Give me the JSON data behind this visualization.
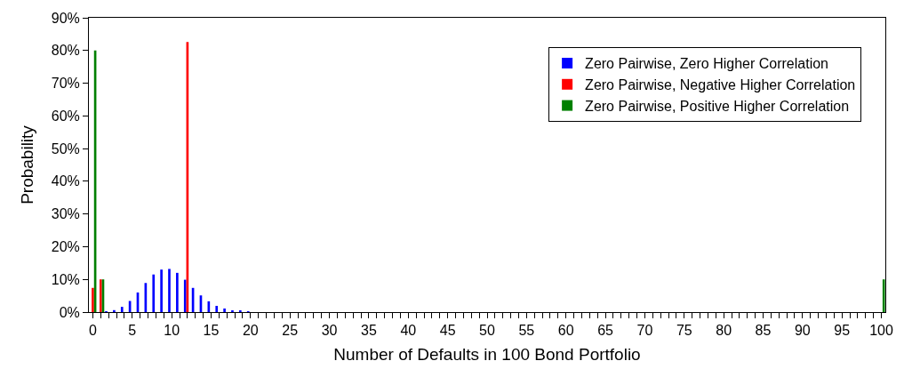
{
  "chart_data": {
    "type": "bar",
    "xlabel": "Number of Defaults in 100 Bond Portfolio",
    "ylabel": "Probability",
    "categories": [
      "0",
      null,
      null,
      null,
      null,
      "5",
      null,
      null,
      null,
      null,
      "10",
      null,
      null,
      null,
      null,
      "15",
      null,
      null,
      null,
      null,
      "20",
      null,
      null,
      null,
      null,
      "25",
      null,
      null,
      null,
      null,
      "30",
      null,
      null,
      null,
      null,
      "35",
      null,
      null,
      null,
      null,
      "40",
      null,
      null,
      null,
      null,
      "45",
      null,
      null,
      null,
      null,
      "50",
      null,
      null,
      null,
      null,
      "55",
      null,
      null,
      null,
      null,
      "60",
      null,
      null,
      null,
      null,
      "65",
      null,
      null,
      null,
      null,
      "70",
      null,
      null,
      null,
      null,
      "75",
      null,
      null,
      null,
      null,
      "80",
      null,
      null,
      null,
      null,
      "85",
      null,
      null,
      null,
      null,
      "90",
      null,
      null,
      null,
      null,
      "95",
      null,
      null,
      null,
      null,
      "100"
    ],
    "series": [
      {
        "name": "Zero Pairwise, Zero Higher Correlation",
        "color": "#0000ff",
        "values": [
          0,
          0,
          0.2,
          0.6,
          1.6,
          3.4,
          6.0,
          8.9,
          11.5,
          13.0,
          13.2,
          12.0,
          9.9,
          7.4,
          5.1,
          3.3,
          1.9,
          1.1,
          0.5,
          0.3,
          0.1,
          0,
          0,
          0,
          0,
          0,
          0,
          0,
          0,
          0,
          0,
          0,
          0,
          0,
          0,
          0,
          0,
          0,
          0,
          0,
          0,
          0,
          0,
          0,
          0,
          0,
          0,
          0,
          0,
          0,
          0,
          0,
          0,
          0,
          0,
          0,
          0,
          0,
          0,
          0,
          0,
          0,
          0,
          0,
          0,
          0,
          0,
          0,
          0,
          0,
          0,
          0,
          0,
          0,
          0,
          0,
          0,
          0,
          0,
          0,
          0,
          0,
          0,
          0,
          0,
          0,
          0,
          0,
          0,
          0,
          0,
          0,
          0,
          0,
          0,
          0,
          0,
          0,
          0,
          0,
          0
        ]
      },
      {
        "name": "Zero Pairwise, Negative Higher Correlation",
        "color": "#ff0000",
        "values": [
          7.4,
          10.0,
          0,
          0,
          0,
          0,
          0,
          0,
          0,
          0,
          0,
          0,
          82.6,
          0,
          0,
          0,
          0,
          0,
          0,
          0,
          0,
          0,
          0,
          0,
          0,
          0,
          0,
          0,
          0,
          0,
          0,
          0,
          0,
          0,
          0,
          0,
          0,
          0,
          0,
          0,
          0,
          0,
          0,
          0,
          0,
          0,
          0,
          0,
          0,
          0,
          0,
          0,
          0,
          0,
          0,
          0,
          0,
          0,
          0,
          0,
          0,
          0,
          0,
          0,
          0,
          0,
          0,
          0,
          0,
          0,
          0,
          0,
          0,
          0,
          0,
          0,
          0,
          0,
          0,
          0,
          0,
          0,
          0,
          0,
          0,
          0,
          0,
          0,
          0,
          0,
          0,
          0,
          0,
          0,
          0,
          0,
          0,
          0,
          0,
          0,
          0
        ]
      },
      {
        "name": "Zero Pairwise, Positive Higher Correlation",
        "color": "#008000",
        "values": [
          80.0,
          10.0,
          0,
          0,
          0,
          0,
          0,
          0,
          0,
          0,
          0,
          0,
          0,
          0,
          0,
          0,
          0,
          0,
          0,
          0,
          0,
          0,
          0,
          0,
          0,
          0,
          0,
          0,
          0,
          0,
          0,
          0,
          0,
          0,
          0,
          0,
          0,
          0,
          0,
          0,
          0,
          0,
          0,
          0,
          0,
          0,
          0,
          0,
          0,
          0,
          0,
          0,
          0,
          0,
          0,
          0,
          0,
          0,
          0,
          0,
          0,
          0,
          0,
          0,
          0,
          0,
          0,
          0,
          0,
          0,
          0,
          0,
          0,
          0,
          0,
          0,
          0,
          0,
          0,
          0,
          0,
          0,
          0,
          0,
          0,
          0,
          0,
          0,
          0,
          0,
          0,
          0,
          0,
          0,
          0,
          0,
          0,
          0,
          0,
          0,
          10.0
        ]
      }
    ],
    "ylim": [
      0,
      90
    ],
    "yticks": [
      {
        "value": 0,
        "label": "0%"
      },
      {
        "value": 10,
        "label": "10%"
      },
      {
        "value": 20,
        "label": "20%"
      },
      {
        "value": 30,
        "label": "30%"
      },
      {
        "value": 40,
        "label": "40%"
      },
      {
        "value": 50,
        "label": "50%"
      },
      {
        "value": 60,
        "label": "60%"
      },
      {
        "value": 70,
        "label": "70%"
      },
      {
        "value": 80,
        "label": "80%"
      },
      {
        "value": 90,
        "label": "90%"
      }
    ],
    "grid": false,
    "legend": "top right"
  }
}
